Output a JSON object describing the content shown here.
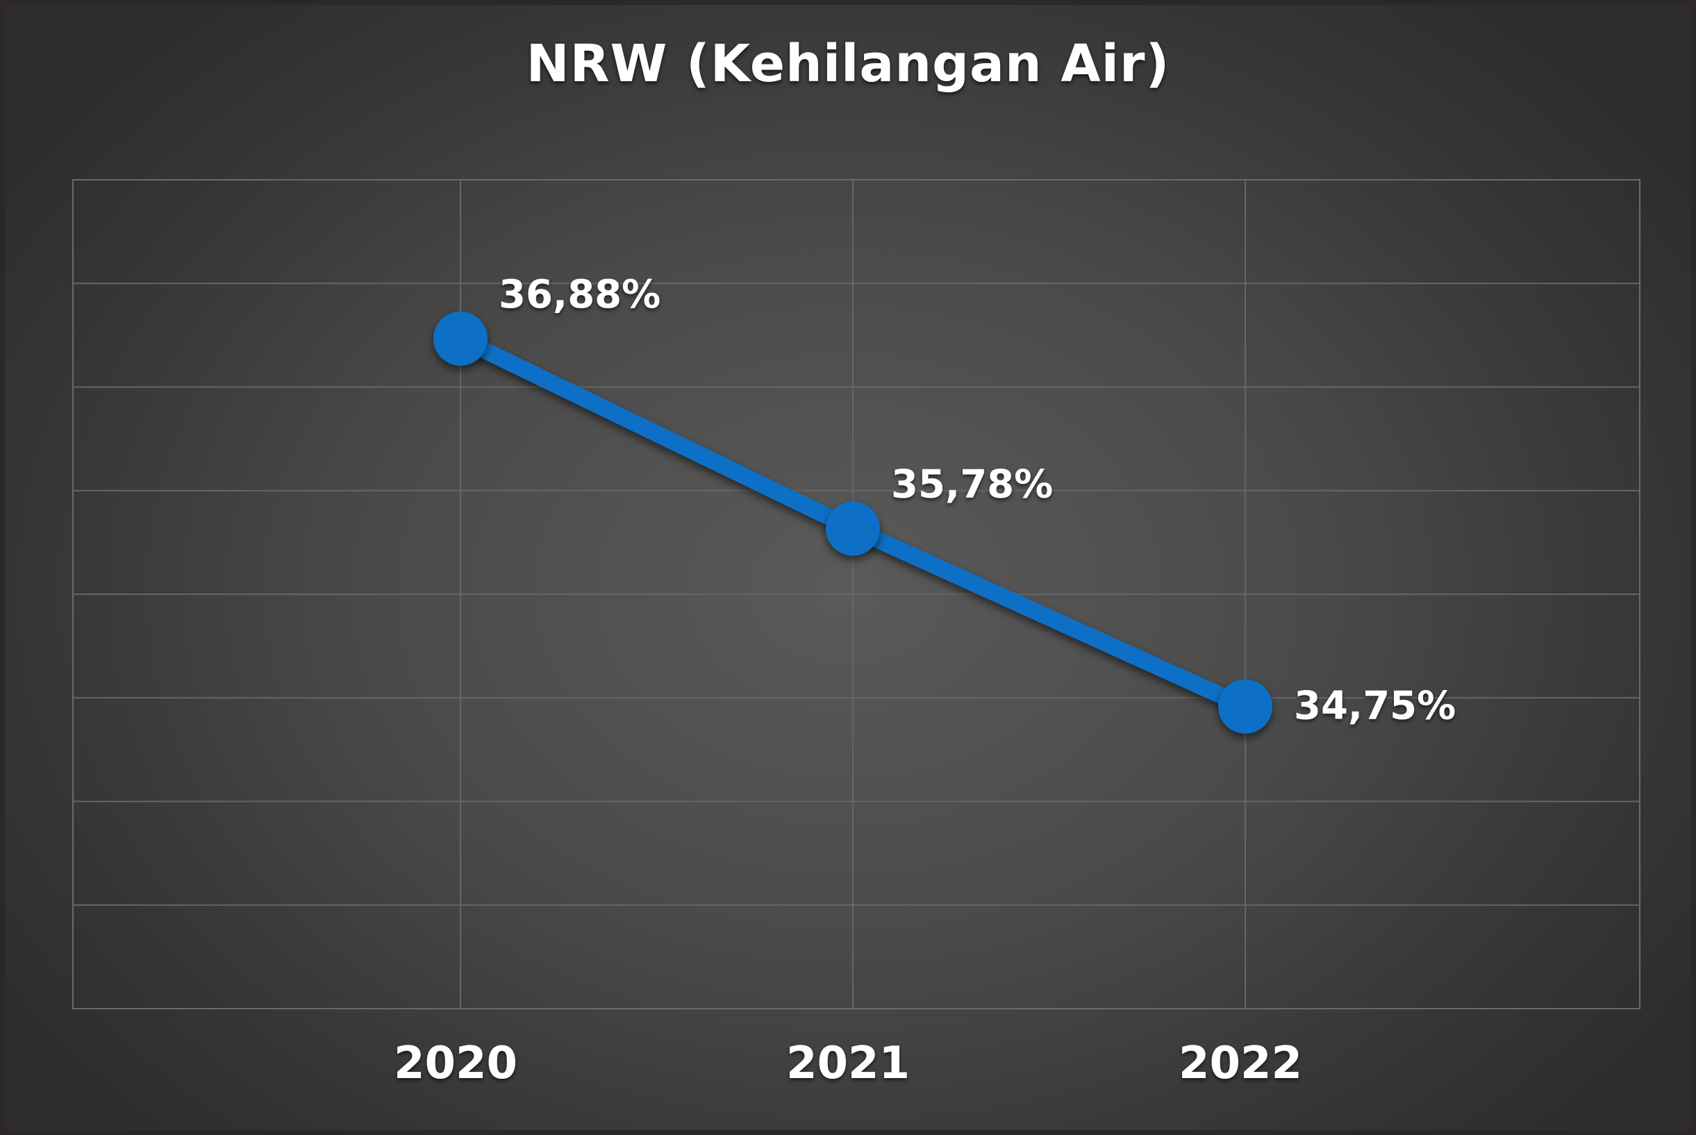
{
  "chart_data": {
    "type": "line",
    "title": "NRW (Kehilangan Air)",
    "xlabel": "",
    "ylabel": "",
    "categories": [
      "2020",
      "2021",
      "2022"
    ],
    "series": [
      {
        "values": [
          36.88,
          35.78,
          34.75
        ],
        "labels": [
          "36,88%",
          "35,78%",
          "34,75%"
        ],
        "color": "#0a6fc6"
      }
    ],
    "ylim": [
      33.0,
      37.8
    ],
    "grid": true,
    "legend": "none"
  }
}
